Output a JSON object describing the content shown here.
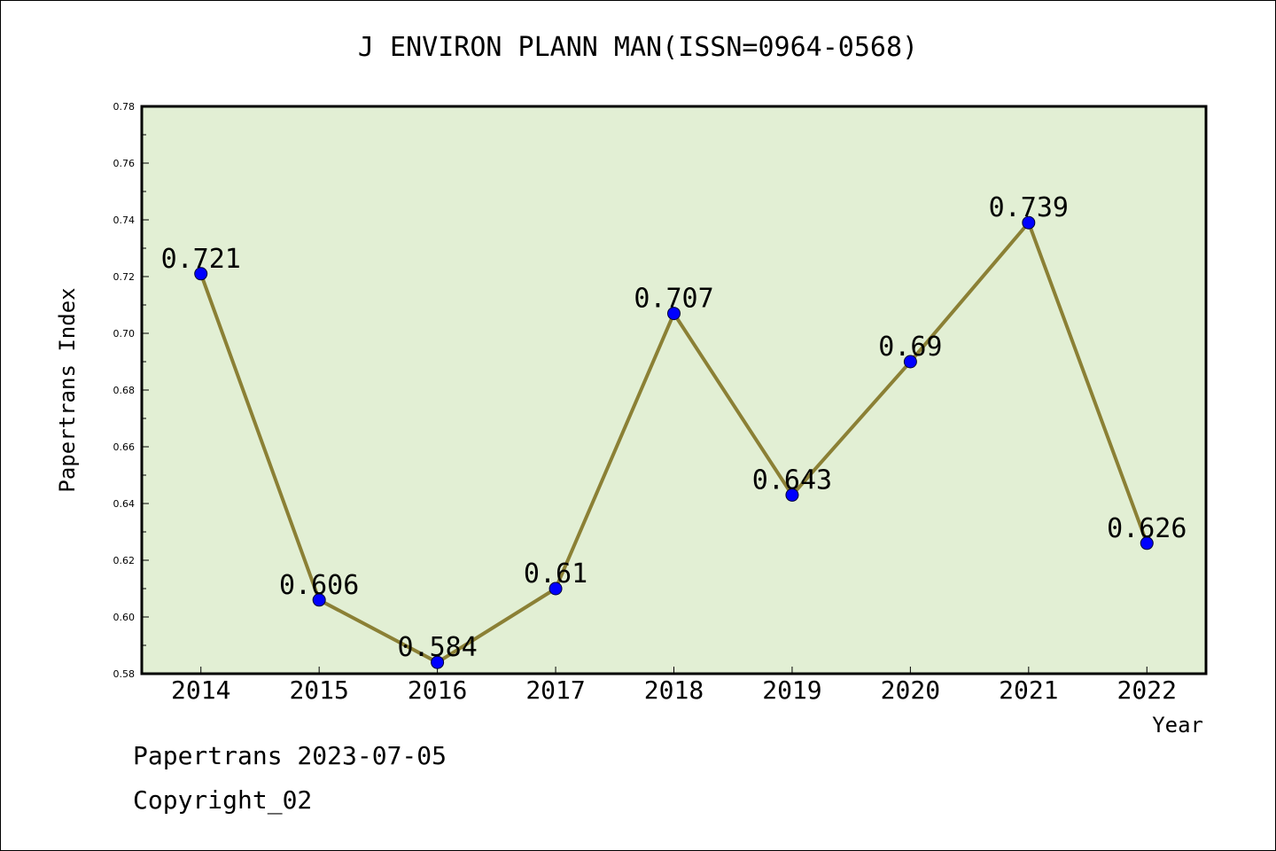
{
  "chart_data": {
    "type": "line",
    "title": "J ENVIRON PLANN MAN(ISSN=0964-0568)",
    "xlabel": "Year",
    "ylabel": "Papertrans Index",
    "categories": [
      "2014",
      "2015",
      "2016",
      "2017",
      "2018",
      "2019",
      "2020",
      "2021",
      "2022"
    ],
    "values": [
      0.721,
      0.606,
      0.584,
      0.61,
      0.707,
      0.643,
      0.69,
      0.739,
      0.626
    ],
    "data_labels": [
      "0.721",
      "0.606",
      "0.584",
      "0.61",
      "0.707",
      "0.643",
      "0.69",
      "0.739",
      "0.626"
    ],
    "ylim": [
      0.58,
      0.78
    ],
    "yticks": [
      "0.58",
      "0.60",
      "0.62",
      "0.64",
      "0.66",
      "0.68",
      "0.70",
      "0.72",
      "0.74",
      "0.76",
      "0.78"
    ],
    "grid": false,
    "colors": {
      "plot_background": "#e2efd4",
      "line": "#8b8035",
      "marker": "#0000ff"
    }
  },
  "footer": {
    "line1": "Papertrans 2023-07-05",
    "line2": "Copyright_02"
  }
}
